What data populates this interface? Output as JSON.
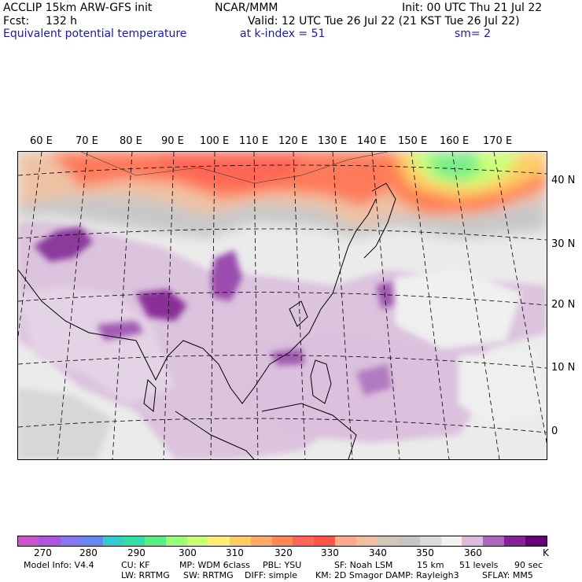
{
  "header": {
    "model": "ACCLIP 15km ARW-GFS init",
    "org": "NCAR/MMM",
    "init": "Init: 00 UTC Thu 21 Jul 22",
    "fcst_label": "Fcst:",
    "fcst_value": "132 h",
    "valid": "Valid: 12 UTC Tue 26 Jul 22 (21 KST Tue 26 Jul 22)",
    "field": "Equivalent potential temperature",
    "level": "at k-index =  51",
    "smooth": "sm= 2"
  },
  "map": {
    "lon_labels": [
      "60 E",
      "70 E",
      "80 E",
      "90 E",
      "100 E",
      "110 E",
      "120 E",
      "130 E",
      "140 E",
      "150 E",
      "160 E",
      "170 E"
    ],
    "lat_labels": [
      "40 N",
      "30 N",
      "20 N",
      "10 N",
      "0"
    ]
  },
  "colorbar": {
    "colors": [
      "#cc55cc",
      "#aa55dd",
      "#8877ee",
      "#6688ee",
      "#33cccc",
      "#33ddaa",
      "#55ee88",
      "#99ff77",
      "#ccff77",
      "#ffee77",
      "#ffcc66",
      "#ffaa66",
      "#ff8855",
      "#ff6655",
      "#ff5544",
      "#ffaa88",
      "#eec0a0",
      "#d6c6b6",
      "#c6c6c6",
      "#dcdcdc",
      "#f2f2f2",
      "#ddbbdd",
      "#aa66bb",
      "#882299",
      "#660077"
    ],
    "labels": [
      "270",
      "280",
      "290",
      "300",
      "310",
      "320",
      "330",
      "340",
      "350",
      "360",
      "K"
    ]
  },
  "footer": {
    "line1": [
      "Model Info: V4.4",
      "CU: KF",
      "MP: WDM 6class",
      "PBL: YSU",
      "SF: Noah LSM",
      "15 km",
      "51 levels",
      "90 sec"
    ],
    "line2": [
      "LW: RRTMG",
      "SW: RRTMG",
      "DIFF: simple",
      "KM: 2D Smagor",
      "DAMP: Rayleigh3",
      "SFLAY: MM5"
    ]
  }
}
